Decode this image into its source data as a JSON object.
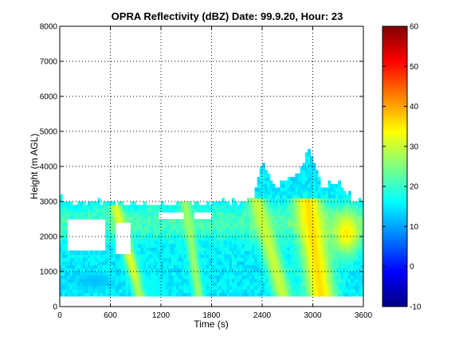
{
  "chart_data": {
    "type": "heatmap",
    "title": "OPRA Reflectivity (dBZ)  Date: 99.9.20, Hour: 23",
    "xlabel": "Time (s)",
    "ylabel": "Height (m AGL)",
    "xlim": [
      0,
      3600
    ],
    "ylim": [
      0,
      8000
    ],
    "xticks": [
      0,
      600,
      1200,
      1800,
      2400,
      3000,
      3600
    ],
    "yticks": [
      0,
      1000,
      2000,
      3000,
      4000,
      5000,
      6000,
      7000,
      8000
    ],
    "grid": true,
    "grid_style": "dotted",
    "colormap": "jet",
    "colorbar": {
      "range": [
        -10,
        60
      ],
      "ticks": [
        -10,
        0,
        10,
        20,
        30,
        40,
        50,
        60
      ]
    },
    "echo_base_height": 300,
    "echo_top_profile": [
      {
        "x": 0,
        "top": 3100
      },
      {
        "x": 300,
        "top": 2950
      },
      {
        "x": 600,
        "top": 3000
      },
      {
        "x": 900,
        "top": 2950
      },
      {
        "x": 1200,
        "top": 2950
      },
      {
        "x": 1500,
        "top": 3000
      },
      {
        "x": 1800,
        "top": 2950
      },
      {
        "x": 2100,
        "top": 3000
      },
      {
        "x": 2300,
        "top": 3100
      },
      {
        "x": 2400,
        "top": 4150
      },
      {
        "x": 2550,
        "top": 3450
      },
      {
        "x": 2700,
        "top": 3600
      },
      {
        "x": 2850,
        "top": 3900
      },
      {
        "x": 2950,
        "top": 4600
      },
      {
        "x": 3100,
        "top": 3400
      },
      {
        "x": 3300,
        "top": 3600
      },
      {
        "x": 3500,
        "top": 3000
      },
      {
        "x": 3600,
        "top": 3100
      }
    ],
    "gaps": [
      {
        "x0": 100,
        "x1": 550,
        "y0": 1650,
        "y1": 2450
      },
      {
        "x0": 650,
        "x1": 830,
        "y0": 1550,
        "y1": 2350
      },
      {
        "x0": 1180,
        "x1": 1470,
        "y0": 2550,
        "y1": 2720
      },
      {
        "x0": 1580,
        "x1": 1800,
        "y0": 2550,
        "y1": 2720
      }
    ],
    "features": [
      {
        "kind": "streak",
        "x_top": 680,
        "x_bottom": 960,
        "y_top": 2700,
        "y_bottom": 300,
        "value": 32,
        "width": 70
      },
      {
        "kind": "streak",
        "x_top": 1500,
        "x_bottom": 1650,
        "y_top": 2800,
        "y_bottom": 300,
        "value": 27,
        "width": 60
      },
      {
        "kind": "streak",
        "x_top": 2350,
        "x_bottom": 2650,
        "y_top": 2900,
        "y_bottom": 300,
        "value": 30,
        "width": 110
      },
      {
        "kind": "streak",
        "x_top": 2950,
        "x_bottom": 3100,
        "y_top": 2900,
        "y_bottom": 300,
        "value": 36,
        "width": 170
      },
      {
        "kind": "blob",
        "x": 3400,
        "y": 2100,
        "rx": 160,
        "ry": 600,
        "value": 35
      },
      {
        "kind": "blob",
        "x": 400,
        "y": 750,
        "rx": 250,
        "ry": 250,
        "value": 12
      },
      {
        "kind": "blob",
        "x": 1100,
        "y": 600,
        "rx": 150,
        "ry": 300,
        "value": 17
      }
    ]
  }
}
